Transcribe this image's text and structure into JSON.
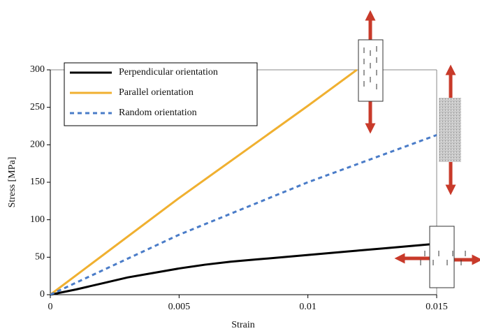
{
  "chart_data": {
    "type": "line",
    "x_label": "Strain",
    "y_label": "Stress [MPa]",
    "xlim": [
      0,
      0.015
    ],
    "xticks": [
      0,
      0.005,
      0.01,
      0.015
    ],
    "ylim": [
      0,
      300
    ],
    "yticks": [
      0,
      50,
      100,
      150,
      200,
      250,
      300
    ],
    "grid": false,
    "legend": "upper left",
    "series": [
      {
        "name": "Perpendicular orientation",
        "color": "#000000",
        "dash": false,
        "x": [
          0,
          0.001,
          0.002,
          0.003,
          0.004,
          0.005,
          0.006,
          0.007,
          0.008,
          0.009,
          0.01,
          0.011,
          0.012,
          0.013,
          0.014,
          0.015
        ],
        "values": [
          0,
          7,
          15,
          23,
          29,
          35,
          40,
          44,
          47,
          50,
          53,
          56,
          59,
          62,
          65,
          68
        ]
      },
      {
        "name": "Parallel orientation",
        "color": "#f0b030",
        "dash": false,
        "x": [
          0,
          0.005,
          0.01,
          0.0119
        ],
        "values": [
          0,
          129,
          252,
          300
        ]
      },
      {
        "name": "Random orientation",
        "color": "#4a7cc8",
        "dash": true,
        "x": [
          0,
          0.005,
          0.01,
          0.015
        ],
        "values": [
          0,
          80,
          150,
          213
        ]
      }
    ]
  }
}
